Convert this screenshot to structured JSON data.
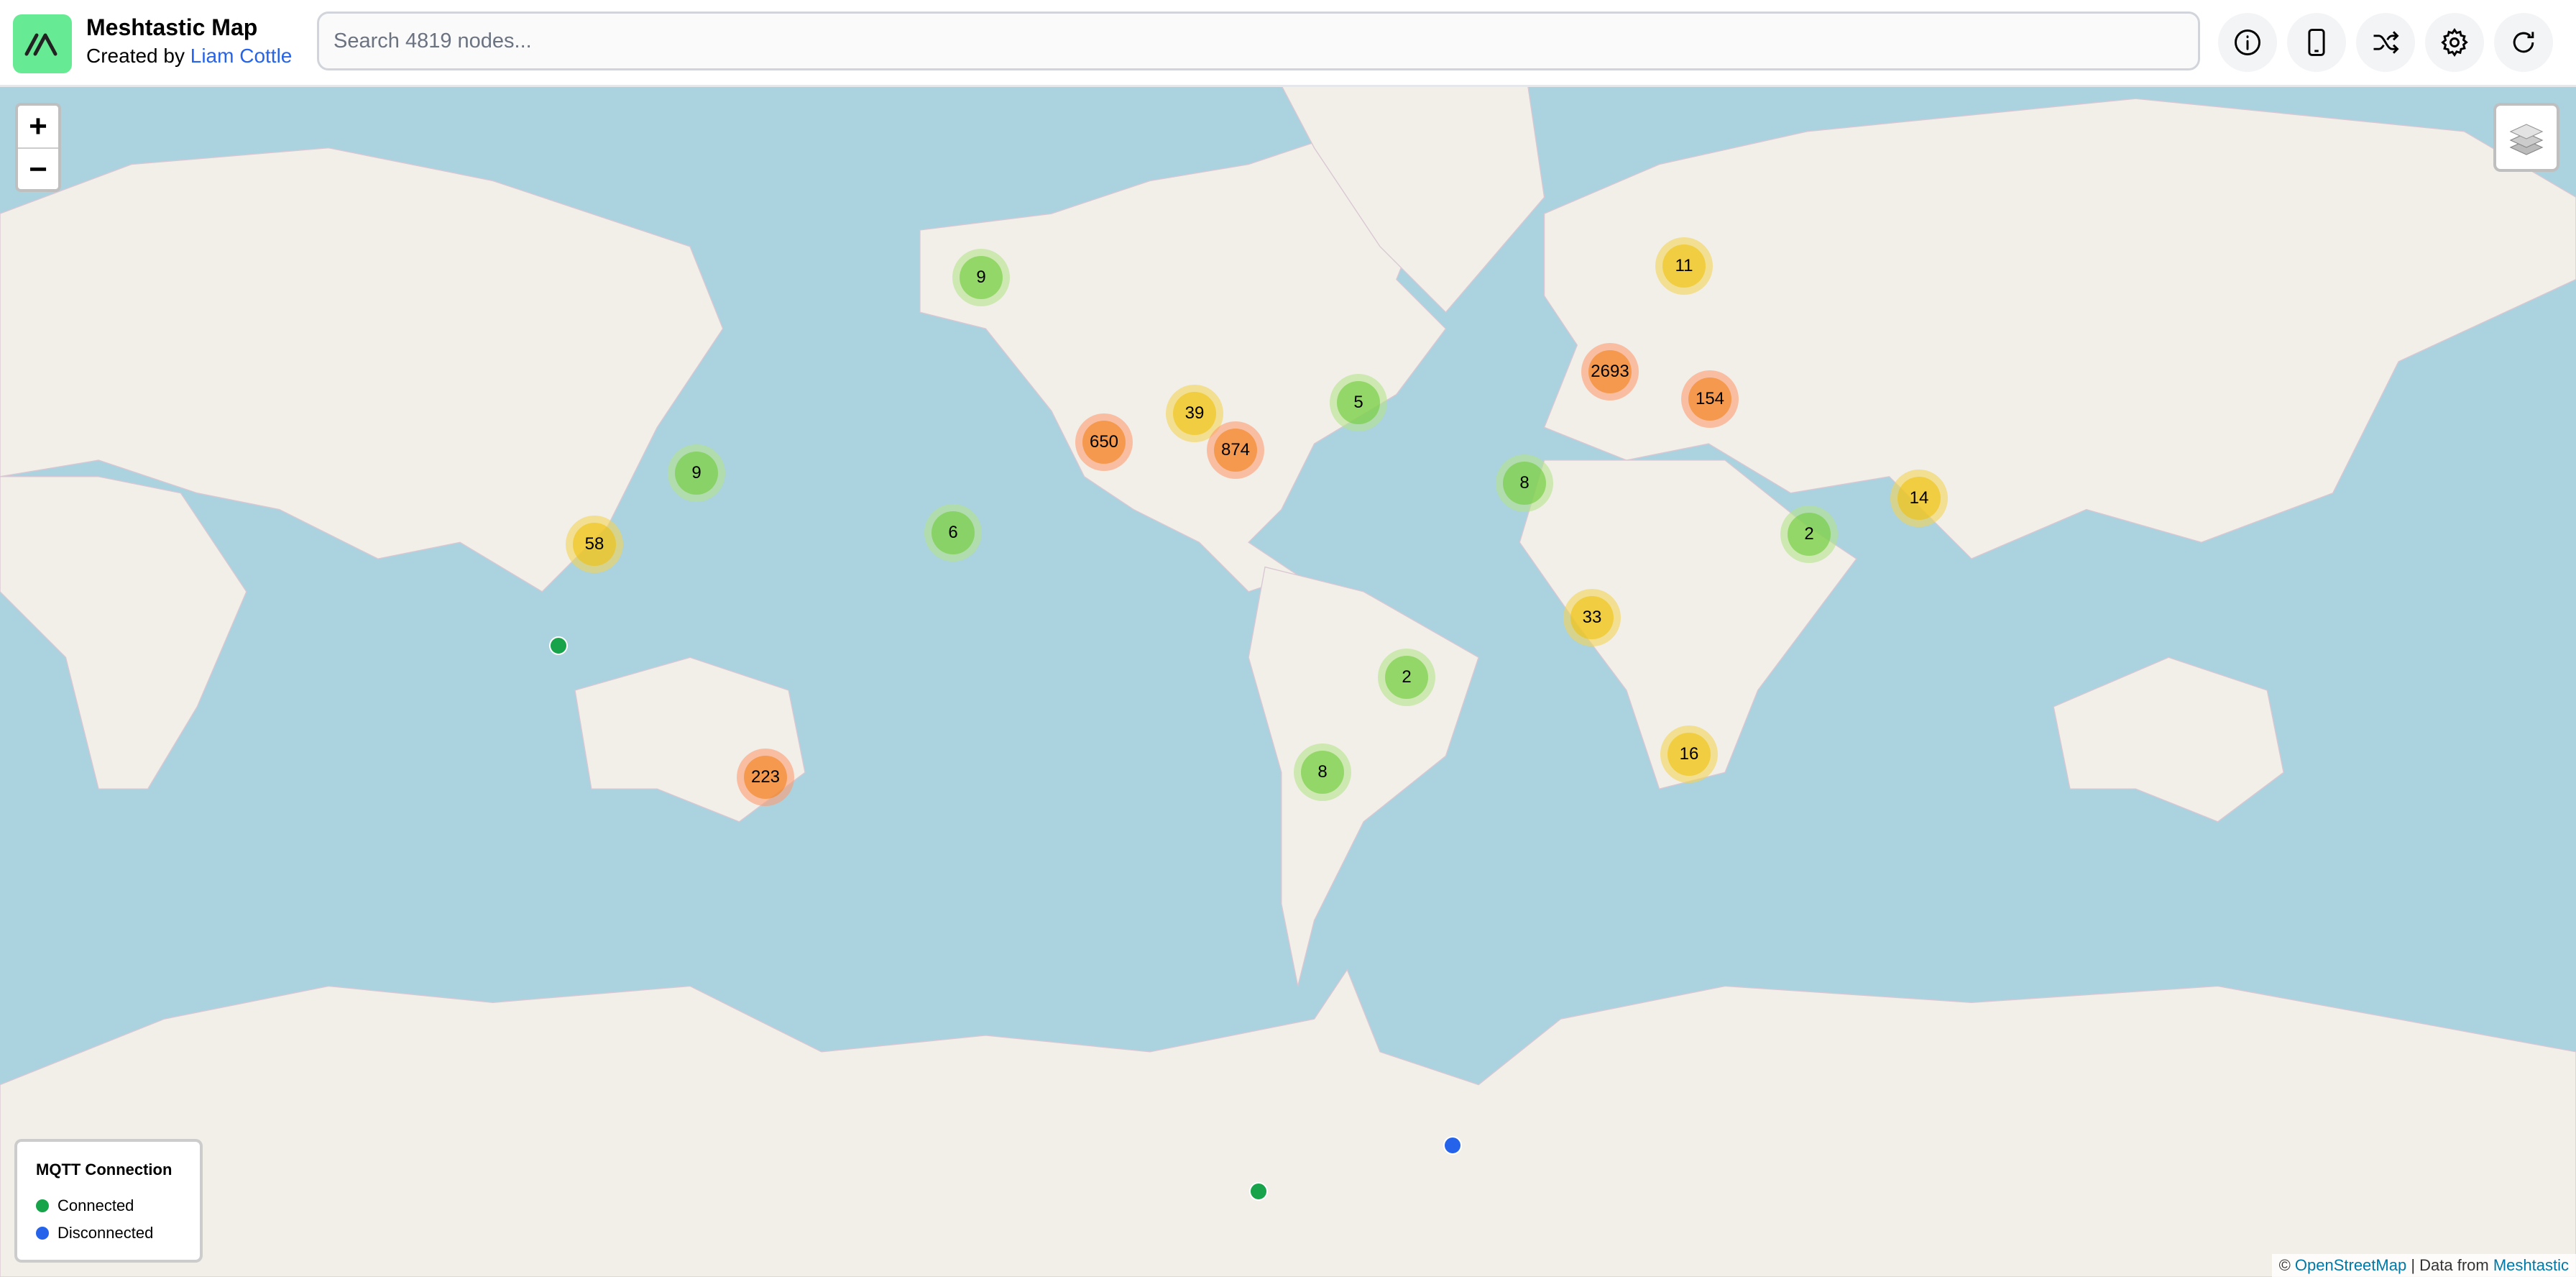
{
  "header": {
    "title": "Meshtastic Map",
    "subtitle_prefix": "Created by ",
    "author": "Liam Cottle",
    "search_placeholder": "Search 4819 nodes...",
    "buttons": [
      {
        "icon": "info-icon"
      },
      {
        "icon": "phone-icon"
      },
      {
        "icon": "shuffle-icon"
      },
      {
        "icon": "gear-icon"
      },
      {
        "icon": "refresh-icon"
      }
    ]
  },
  "map": {
    "zoom_in": "+",
    "zoom_out": "−",
    "colors": {
      "ocean": "#aad3df",
      "land": "#f2efe9",
      "connected": "#16a34a",
      "disconnected": "#2563eb"
    },
    "clusters": [
      {
        "count": "9"
      },
      {
        "count": "11"
      },
      {
        "count": "2693"
      },
      {
        "count": "154"
      },
      {
        "count": "5"
      },
      {
        "count": "39"
      },
      {
        "count": "650"
      },
      {
        "count": "874"
      },
      {
        "count": "9"
      },
      {
        "count": "8"
      },
      {
        "count": "58"
      },
      {
        "count": "6"
      },
      {
        "count": "2"
      },
      {
        "count": "14"
      },
      {
        "count": "33"
      },
      {
        "count": "2"
      },
      {
        "count": "16"
      },
      {
        "count": "8"
      },
      {
        "count": "223"
      }
    ],
    "nodes": [
      {
        "status": "connected"
      },
      {
        "status": "connected"
      },
      {
        "status": "disconnected"
      }
    ]
  },
  "legend": {
    "title": "MQTT Connection",
    "items": [
      {
        "label": "Connected",
        "color": "#16a34a"
      },
      {
        "label": "Disconnected",
        "color": "#2563eb"
      }
    ]
  },
  "attribution": {
    "prefix": "© ",
    "osm": "OpenStreetMap",
    "sep": " | Data from ",
    "source": "Meshtastic"
  }
}
